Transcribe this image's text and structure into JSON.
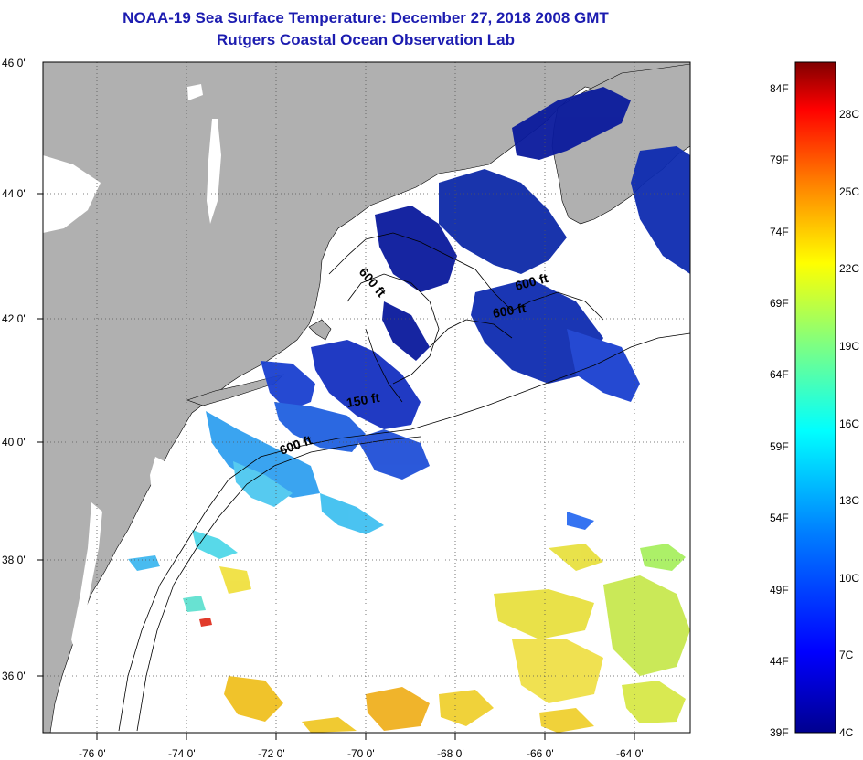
{
  "header": {
    "title": "NOAA-19 Sea Surface Temperature:  December 27, 2018 2008 GMT",
    "subtitle": "Rutgers Coastal Ocean Observation Lab"
  },
  "map": {
    "lat_labels": [
      "46 0'",
      "44 0'",
      "42 0'",
      "40 0'",
      "38 0'",
      "36 0'"
    ],
    "lon_labels": [
      "-76 0'",
      "-74 0'",
      "-72 0'",
      "-70 0'",
      "-68 0'",
      "-66 0'",
      "-64 0'"
    ],
    "depth_labels": [
      "600 ft",
      "600 ft",
      "600 ft",
      "150 ft",
      "600 ft"
    ],
    "colors": {
      "land": "#b0b0b0",
      "ocean_cloud": "#ffffff",
      "frame": "#000000"
    }
  },
  "colorbar": {
    "fahrenheit": [
      "84F",
      "79F",
      "74F",
      "69F",
      "64F",
      "59F",
      "54F",
      "49F",
      "44F",
      "39F"
    ],
    "celsius": [
      "28C",
      "25C",
      "22C",
      "19C",
      "16C",
      "13C",
      "10C",
      "7C",
      "4C"
    ],
    "gradient": [
      "#00008f",
      "#0000ff",
      "#0080ff",
      "#00ffff",
      "#80ff80",
      "#ffff00",
      "#ff8000",
      "#ff0000",
      "#800000"
    ]
  }
}
